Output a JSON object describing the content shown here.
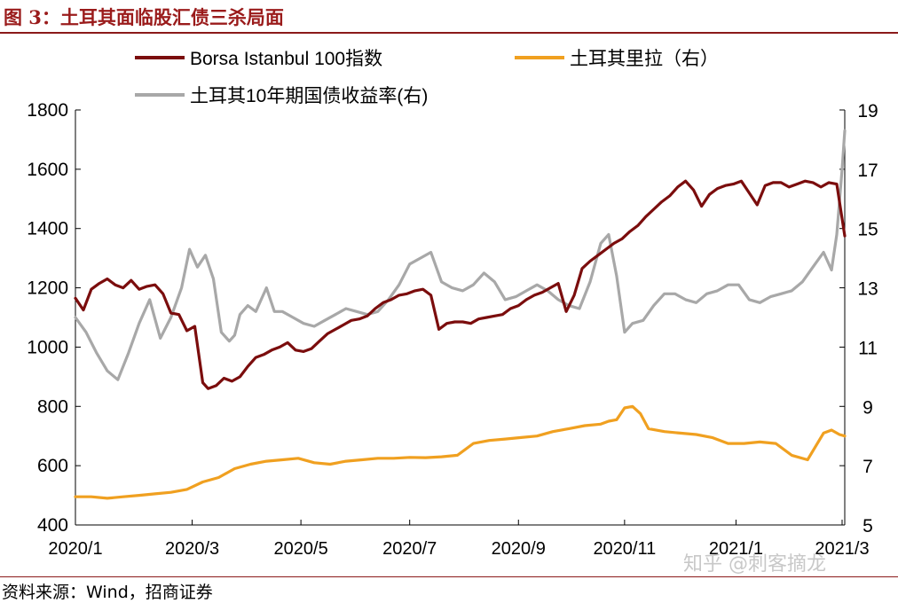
{
  "figure": {
    "title": "图 3：土耳其面临股汇债三杀局面",
    "source": "资料来源：Wind，招商证券",
    "watermark": "知乎 @刺客摘龙"
  },
  "colors": {
    "bist": "#7b0d0d",
    "lira": "#f0a020",
    "bond": "#a8a8a8",
    "frame": "#8b1a1a"
  },
  "chart_data": {
    "type": "line",
    "title": "",
    "x_ticks": [
      "2020/1",
      "2020/3",
      "2020/5",
      "2020/7",
      "2020/9",
      "2020/11",
      "2021/1",
      "2021/3"
    ],
    "x_range": [
      0,
      290
    ],
    "x_tick_positions": [
      0,
      44,
      85,
      126,
      167,
      207,
      249,
      289
    ],
    "y_left": {
      "range": [
        400,
        1800
      ],
      "ticks": [
        400,
        600,
        800,
        1000,
        1200,
        1400,
        1600,
        1800
      ]
    },
    "y_right": {
      "range": [
        5,
        19
      ],
      "ticks": [
        5,
        7,
        9,
        11,
        13,
        15,
        17,
        19
      ]
    },
    "series": [
      {
        "name": "Borsa Istanbul 100指数",
        "axis": "left",
        "color": "#7b0d0d",
        "x": [
          0,
          3,
          6,
          9,
          12,
          15,
          18,
          21,
          24,
          27,
          30,
          33,
          36,
          39,
          42,
          45,
          48,
          50,
          53,
          56,
          59,
          62,
          65,
          68,
          71,
          74,
          77,
          80,
          83,
          86,
          89,
          92,
          95,
          98,
          101,
          104,
          107,
          110,
          113,
          116,
          119,
          122,
          125,
          128,
          131,
          134,
          137,
          140,
          143,
          146,
          149,
          152,
          155,
          158,
          161,
          164,
          167,
          170,
          173,
          176,
          179,
          182,
          185,
          188,
          191,
          194,
          197,
          200,
          203,
          206,
          209,
          212,
          215,
          218,
          221,
          224,
          227,
          230,
          233,
          236,
          239,
          242,
          245,
          248,
          251,
          254,
          257,
          260,
          263,
          266,
          269,
          272,
          275,
          278,
          281,
          284,
          287,
          290
        ],
        "values": [
          1165,
          1125,
          1195,
          1215,
          1230,
          1210,
          1200,
          1225,
          1195,
          1205,
          1210,
          1180,
          1115,
          1110,
          1055,
          1070,
          880,
          860,
          870,
          895,
          885,
          900,
          935,
          965,
          975,
          990,
          1000,
          1015,
          990,
          985,
          995,
          1020,
          1045,
          1060,
          1075,
          1090,
          1095,
          1105,
          1130,
          1150,
          1160,
          1175,
          1180,
          1190,
          1195,
          1175,
          1060,
          1080,
          1085,
          1085,
          1080,
          1095,
          1100,
          1105,
          1110,
          1130,
          1140,
          1160,
          1175,
          1185,
          1200,
          1215,
          1120,
          1175,
          1265,
          1290,
          1310,
          1330,
          1350,
          1365,
          1390,
          1410,
          1440,
          1465,
          1490,
          1510,
          1540,
          1560,
          1530,
          1475,
          1515,
          1535,
          1545,
          1550,
          1560,
          1520,
          1480,
          1545,
          1555,
          1555,
          1540,
          1550,
          1560,
          1555,
          1540,
          1555,
          1550,
          1375
        ]
      },
      {
        "name": "土耳其里拉（右）",
        "axis": "right",
        "color": "#f0a020",
        "x": [
          0,
          6,
          12,
          18,
          24,
          30,
          36,
          42,
          48,
          54,
          60,
          66,
          72,
          78,
          84,
          90,
          96,
          102,
          108,
          114,
          120,
          126,
          132,
          138,
          144,
          150,
          156,
          162,
          168,
          174,
          180,
          186,
          192,
          198,
          201,
          204,
          207,
          210,
          213,
          216,
          222,
          228,
          234,
          240,
          246,
          252,
          258,
          264,
          270,
          276,
          282,
          285,
          288,
          290
        ],
        "values": [
          5.95,
          5.95,
          5.9,
          5.95,
          6.0,
          6.05,
          6.1,
          6.2,
          6.45,
          6.6,
          6.9,
          7.05,
          7.15,
          7.2,
          7.25,
          7.1,
          7.05,
          7.15,
          7.2,
          7.25,
          7.25,
          7.28,
          7.27,
          7.3,
          7.35,
          7.75,
          7.85,
          7.9,
          7.95,
          8.0,
          8.15,
          8.25,
          8.35,
          8.4,
          8.5,
          8.55,
          8.95,
          9.0,
          8.75,
          8.25,
          8.15,
          8.1,
          8.05,
          7.95,
          7.75,
          7.75,
          7.8,
          7.75,
          7.35,
          7.2,
          8.1,
          8.2,
          8.05,
          8.0
        ]
      },
      {
        "name": "土耳其10年期国债收益率(右)",
        "axis": "right",
        "color": "#a8a8a8",
        "x": [
          0,
          4,
          8,
          12,
          16,
          20,
          24,
          28,
          32,
          36,
          40,
          43,
          46,
          49,
          52,
          55,
          58,
          60,
          62,
          65,
          68,
          70,
          72,
          75,
          78,
          82,
          86,
          90,
          94,
          98,
          102,
          106,
          110,
          114,
          118,
          122,
          126,
          130,
          134,
          138,
          142,
          146,
          150,
          154,
          158,
          162,
          166,
          170,
          174,
          178,
          182,
          186,
          190,
          194,
          198,
          201,
          204,
          207,
          210,
          214,
          218,
          222,
          226,
          230,
          234,
          238,
          242,
          246,
          250,
          254,
          258,
          262,
          266,
          270,
          274,
          278,
          282,
          285,
          287,
          289,
          290
        ],
        "values": [
          12.0,
          11.5,
          10.8,
          10.2,
          9.9,
          10.8,
          11.8,
          12.6,
          11.3,
          12.0,
          13.0,
          14.3,
          13.7,
          14.1,
          13.3,
          11.5,
          11.2,
          11.4,
          12.1,
          12.4,
          12.2,
          12.6,
          13.0,
          12.2,
          12.2,
          12.0,
          11.8,
          11.7,
          11.9,
          12.1,
          12.3,
          12.2,
          12.1,
          12.2,
          12.6,
          13.1,
          13.8,
          14.0,
          14.2,
          13.2,
          13.0,
          12.9,
          13.1,
          13.5,
          13.2,
          12.6,
          12.7,
          12.9,
          13.1,
          12.9,
          12.6,
          12.4,
          12.3,
          13.2,
          14.5,
          14.8,
          13.4,
          11.5,
          11.8,
          11.9,
          12.4,
          12.8,
          12.8,
          12.6,
          12.5,
          12.8,
          12.9,
          13.1,
          13.1,
          12.6,
          12.5,
          12.7,
          12.8,
          12.9,
          13.2,
          13.7,
          14.2,
          13.6,
          14.8,
          17.0,
          18.3
        ]
      }
    ],
    "legend": {
      "placement": "top",
      "entries": [
        "Borsa Istanbul 100指数",
        "土耳其里拉（右）",
        "土耳其10年期国债收益率(右)"
      ]
    }
  }
}
